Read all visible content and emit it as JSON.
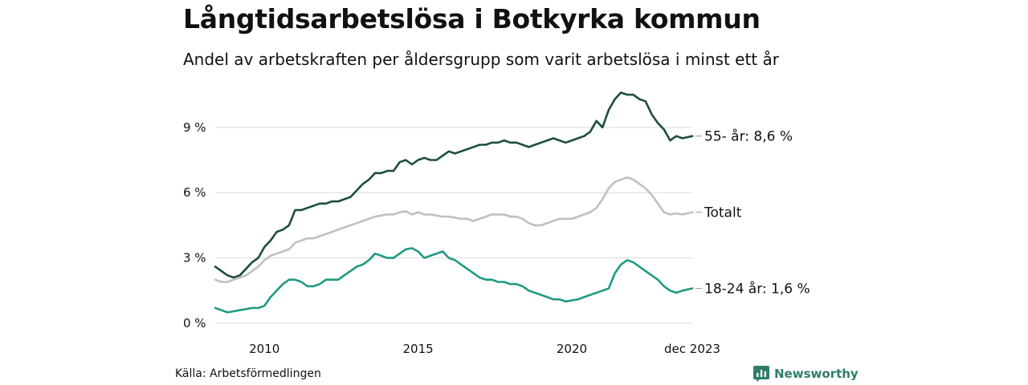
{
  "chart_data": {
    "type": "line",
    "title": "Långtidsarbetslösa i Botkyrka kommun",
    "subtitle": "Andel av arbetskraften per åldersgrupp som varit arbetslösa i minst ett år",
    "source": "Källa: Arbetsförmedlingen",
    "brand": "Newsworthy",
    "xlabel": "",
    "ylabel": "",
    "x_range": [
      2008.4,
      2023.92
    ],
    "ylim": [
      0,
      10.8
    ],
    "y_ticks": [
      {
        "value": 0,
        "label": "0 %"
      },
      {
        "value": 3,
        "label": "3 %"
      },
      {
        "value": 6,
        "label": "6 %"
      },
      {
        "value": 9,
        "label": "9 %"
      }
    ],
    "x_ticks": [
      {
        "value": 2010,
        "label": "2010"
      },
      {
        "value": 2015,
        "label": "2015"
      },
      {
        "value": 2020,
        "label": "2020"
      },
      {
        "value": 2023.92,
        "label": "dec 2023"
      }
    ],
    "grid": true,
    "series": [
      {
        "name": "55- år",
        "label": "55- år: 8,6 %",
        "color": "#1e4d40",
        "x": [
          2008.4,
          2008.6,
          2008.8,
          2009.0,
          2009.2,
          2009.4,
          2009.6,
          2009.8,
          2010.0,
          2010.2,
          2010.4,
          2010.6,
          2010.8,
          2011.0,
          2011.2,
          2011.4,
          2011.6,
          2011.8,
          2012.0,
          2012.2,
          2012.4,
          2012.6,
          2012.8,
          2013.0,
          2013.2,
          2013.4,
          2013.6,
          2013.8,
          2014.0,
          2014.2,
          2014.4,
          2014.6,
          2014.8,
          2015.0,
          2015.2,
          2015.4,
          2015.6,
          2015.8,
          2016.0,
          2016.2,
          2016.4,
          2016.6,
          2016.8,
          2017.0,
          2017.2,
          2017.4,
          2017.6,
          2017.8,
          2018.0,
          2018.2,
          2018.4,
          2018.6,
          2018.8,
          2019.0,
          2019.2,
          2019.4,
          2019.6,
          2019.8,
          2020.0,
          2020.2,
          2020.4,
          2020.6,
          2020.8,
          2021.0,
          2021.2,
          2021.4,
          2021.6,
          2021.8,
          2022.0,
          2022.2,
          2022.4,
          2022.6,
          2022.8,
          2023.0,
          2023.2,
          2023.4,
          2023.6,
          2023.92
        ],
        "values": [
          2.6,
          2.4,
          2.2,
          2.1,
          2.2,
          2.5,
          2.8,
          3.0,
          3.5,
          3.8,
          4.2,
          4.3,
          4.5,
          5.2,
          5.2,
          5.3,
          5.4,
          5.5,
          5.5,
          5.6,
          5.6,
          5.7,
          5.8,
          6.1,
          6.4,
          6.6,
          6.9,
          6.9,
          7.0,
          7.0,
          7.4,
          7.5,
          7.3,
          7.5,
          7.6,
          7.5,
          7.5,
          7.7,
          7.9,
          7.8,
          7.9,
          8.0,
          8.1,
          8.2,
          8.2,
          8.3,
          8.3,
          8.4,
          8.3,
          8.3,
          8.2,
          8.1,
          8.2,
          8.3,
          8.4,
          8.5,
          8.4,
          8.3,
          8.4,
          8.5,
          8.6,
          8.8,
          9.3,
          9.0,
          9.8,
          10.3,
          10.6,
          10.5,
          10.5,
          10.3,
          10.2,
          9.6,
          9.2,
          8.9,
          8.4,
          8.6,
          8.5,
          8.6
        ]
      },
      {
        "name": "Totalt",
        "label": "Totalt",
        "color": "#c1bec7",
        "x": [
          2008.4,
          2008.6,
          2008.8,
          2009.0,
          2009.2,
          2009.4,
          2009.6,
          2009.8,
          2010.0,
          2010.2,
          2010.4,
          2010.6,
          2010.8,
          2011.0,
          2011.2,
          2011.4,
          2011.6,
          2011.8,
          2012.0,
          2012.2,
          2012.4,
          2012.6,
          2012.8,
          2013.0,
          2013.2,
          2013.4,
          2013.6,
          2013.8,
          2014.0,
          2014.2,
          2014.4,
          2014.6,
          2014.8,
          2015.0,
          2015.2,
          2015.4,
          2015.6,
          2015.8,
          2016.0,
          2016.2,
          2016.4,
          2016.6,
          2016.8,
          2017.0,
          2017.2,
          2017.4,
          2017.6,
          2017.8,
          2018.0,
          2018.2,
          2018.4,
          2018.6,
          2018.8,
          2019.0,
          2019.2,
          2019.4,
          2019.6,
          2019.8,
          2020.0,
          2020.2,
          2020.4,
          2020.6,
          2020.8,
          2021.0,
          2021.2,
          2021.4,
          2021.6,
          2021.8,
          2022.0,
          2022.2,
          2022.4,
          2022.6,
          2022.8,
          2023.0,
          2023.2,
          2023.4,
          2023.6,
          2023.92
        ],
        "values": [
          2.0,
          1.9,
          1.9,
          2.0,
          2.1,
          2.2,
          2.4,
          2.6,
          2.9,
          3.1,
          3.2,
          3.3,
          3.4,
          3.7,
          3.8,
          3.9,
          3.9,
          4.0,
          4.1,
          4.2,
          4.3,
          4.4,
          4.5,
          4.6,
          4.7,
          4.8,
          4.9,
          4.95,
          5.0,
          5.0,
          5.1,
          5.15,
          5.0,
          5.1,
          5.0,
          5.0,
          4.95,
          4.9,
          4.9,
          4.85,
          4.8,
          4.8,
          4.7,
          4.8,
          4.9,
          5.0,
          5.0,
          5.0,
          4.9,
          4.9,
          4.8,
          4.6,
          4.5,
          4.5,
          4.6,
          4.7,
          4.8,
          4.8,
          4.8,
          4.9,
          5.0,
          5.1,
          5.3,
          5.7,
          6.2,
          6.5,
          6.6,
          6.7,
          6.6,
          6.4,
          6.2,
          5.9,
          5.5,
          5.1,
          5.0,
          5.05,
          5.0,
          5.1
        ]
      },
      {
        "name": "18-24 år",
        "label": "18-24 år: 1,6 %",
        "color": "#1f9a82",
        "x": [
          2008.4,
          2008.6,
          2008.8,
          2009.0,
          2009.2,
          2009.4,
          2009.6,
          2009.8,
          2010.0,
          2010.2,
          2010.4,
          2010.6,
          2010.8,
          2011.0,
          2011.2,
          2011.4,
          2011.6,
          2011.8,
          2012.0,
          2012.2,
          2012.4,
          2012.6,
          2012.8,
          2013.0,
          2013.2,
          2013.4,
          2013.6,
          2013.8,
          2014.0,
          2014.2,
          2014.4,
          2014.6,
          2014.8,
          2015.0,
          2015.2,
          2015.4,
          2015.6,
          2015.8,
          2016.0,
          2016.2,
          2016.4,
          2016.6,
          2016.8,
          2017.0,
          2017.2,
          2017.4,
          2017.6,
          2017.8,
          2018.0,
          2018.2,
          2018.4,
          2018.6,
          2018.8,
          2019.0,
          2019.2,
          2019.4,
          2019.6,
          2019.8,
          2020.0,
          2020.2,
          2020.4,
          2020.6,
          2020.8,
          2021.0,
          2021.2,
          2021.4,
          2021.6,
          2021.8,
          2022.0,
          2022.2,
          2022.4,
          2022.6,
          2022.8,
          2023.0,
          2023.2,
          2023.4,
          2023.6,
          2023.92
        ],
        "values": [
          0.7,
          0.6,
          0.5,
          0.55,
          0.6,
          0.65,
          0.7,
          0.7,
          0.8,
          1.2,
          1.5,
          1.8,
          2.0,
          2.0,
          1.9,
          1.7,
          1.7,
          1.8,
          2.0,
          2.0,
          2.0,
          2.2,
          2.4,
          2.6,
          2.7,
          2.9,
          3.2,
          3.1,
          3.0,
          3.0,
          3.2,
          3.4,
          3.45,
          3.3,
          3.0,
          3.1,
          3.2,
          3.3,
          3.0,
          2.9,
          2.7,
          2.5,
          2.3,
          2.1,
          2.0,
          2.0,
          1.9,
          1.9,
          1.8,
          1.8,
          1.7,
          1.5,
          1.4,
          1.3,
          1.2,
          1.1,
          1.1,
          1.0,
          1.05,
          1.1,
          1.2,
          1.3,
          1.4,
          1.5,
          1.6,
          2.3,
          2.7,
          2.9,
          2.8,
          2.6,
          2.4,
          2.2,
          2.0,
          1.7,
          1.5,
          1.4,
          1.5,
          1.6
        ]
      }
    ]
  }
}
